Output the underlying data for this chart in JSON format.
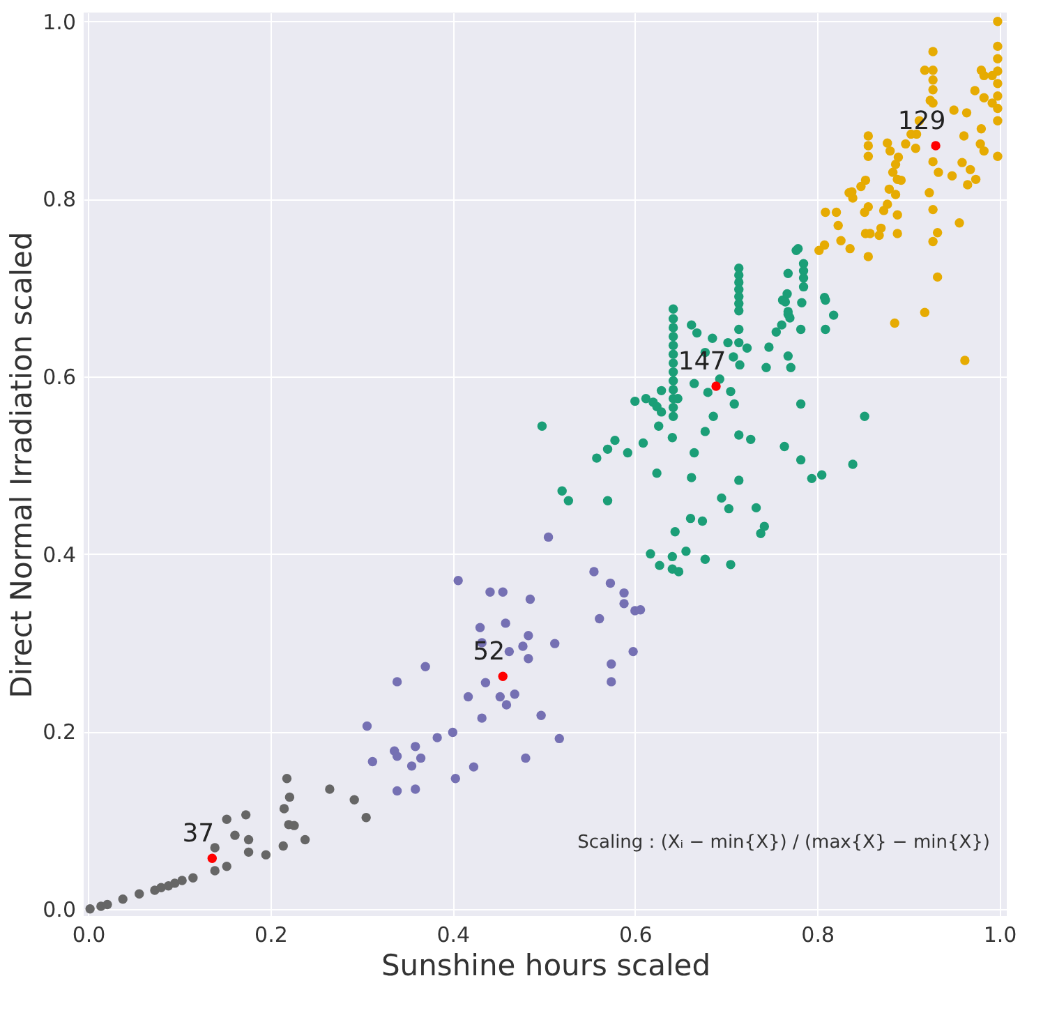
{
  "chart_data": {
    "type": "scatter",
    "xlabel": "Sunshine hours scaled",
    "ylabel": "Direct Normal Irradiation scaled",
    "xlim": [
      -0.005,
      1.008
    ],
    "ylim": [
      -0.008,
      1.01
    ],
    "xticks": [
      {
        "value": 0,
        "label": "0.0"
      },
      {
        "value": 0.2,
        "label": "0.2"
      },
      {
        "value": 0.4,
        "label": "0.4"
      },
      {
        "value": 0.6,
        "label": "0.6"
      },
      {
        "value": 0.8,
        "label": "0.8"
      },
      {
        "value": 1,
        "label": "1.0"
      }
    ],
    "yticks": [
      {
        "value": 0,
        "label": "0.0"
      },
      {
        "value": 0.2,
        "label": "0.2"
      },
      {
        "value": 0.4,
        "label": "0.4"
      },
      {
        "value": 0.6,
        "label": "0.6"
      },
      {
        "value": 0.8,
        "label": "0.8"
      },
      {
        "value": 1,
        "label": "1.0"
      }
    ],
    "grid": true,
    "marker": "circle",
    "annotations": [
      "Scaling : (Xᵢ − min{X}) / (max{X} − min{X})",
      {
        "text": "37",
        "x": 0.136,
        "y": 0.057
      },
      {
        "text": "52",
        "x": 0.455,
        "y": 0.262
      },
      {
        "text": "147",
        "x": 0.689,
        "y": 0.589
      },
      {
        "text": "129",
        "x": 0.93,
        "y": 0.86
      }
    ],
    "series": [
      {
        "color": "#666666",
        "x": [
          0.002,
          0.014,
          0.021,
          0.038,
          0.056,
          0.073,
          0.08,
          0.088,
          0.095,
          0.103,
          0.115,
          0.139,
          0.152,
          0.139,
          0.152,
          0.161,
          0.173,
          0.176,
          0.176,
          0.195,
          0.214,
          0.218,
          0.221,
          0.215,
          0.22,
          0.226,
          0.238,
          0.265,
          0.292,
          0.305
        ],
        "values": [
          0.0,
          0.003,
          0.005,
          0.011,
          0.017,
          0.021,
          0.024,
          0.026,
          0.029,
          0.032,
          0.035,
          0.043,
          0.048,
          0.069,
          0.101,
          0.083,
          0.106,
          0.078,
          0.064,
          0.061,
          0.071,
          0.147,
          0.126,
          0.113,
          0.095,
          0.094,
          0.078,
          0.135,
          0.123,
          0.103
        ]
      },
      {
        "color": "#7570b3",
        "x": [
          0.339,
          0.37,
          0.306,
          0.312,
          0.336,
          0.339,
          0.355,
          0.359,
          0.365,
          0.383,
          0.4,
          0.339,
          0.359,
          0.505,
          0.406,
          0.441,
          0.455,
          0.485,
          0.555,
          0.573,
          0.588,
          0.588,
          0.6,
          0.606,
          0.561,
          0.43,
          0.458,
          0.483,
          0.477,
          0.512,
          0.462,
          0.483,
          0.436,
          0.417,
          0.452,
          0.468,
          0.459,
          0.432,
          0.497,
          0.517,
          0.574,
          0.574,
          0.598,
          0.48,
          0.403,
          0.423,
          0.432
        ],
        "values": [
          0.256,
          0.273,
          0.206,
          0.166,
          0.178,
          0.172,
          0.161,
          0.183,
          0.17,
          0.193,
          0.199,
          0.133,
          0.135,
          0.419,
          0.37,
          0.357,
          0.357,
          0.349,
          0.38,
          0.367,
          0.356,
          0.344,
          0.336,
          0.337,
          0.327,
          0.317,
          0.322,
          0.308,
          0.296,
          0.299,
          0.29,
          0.282,
          0.255,
          0.239,
          0.239,
          0.242,
          0.23,
          0.215,
          0.218,
          0.192,
          0.276,
          0.256,
          0.29,
          0.17,
          0.147,
          0.16,
          0.3
        ]
      },
      {
        "color": "#1b9e77",
        "x": [
          0.642,
          0.642,
          0.642,
          0.642,
          0.642,
          0.642,
          0.642,
          0.642,
          0.642,
          0.642,
          0.642,
          0.642,
          0.642,
          0.714,
          0.714,
          0.714,
          0.714,
          0.714,
          0.714,
          0.714,
          0.662,
          0.668,
          0.685,
          0.702,
          0.714,
          0.723,
          0.714,
          0.677,
          0.715,
          0.708,
          0.665,
          0.68,
          0.693,
          0.705,
          0.709,
          0.686,
          0.677,
          0.629,
          0.612,
          0.62,
          0.624,
          0.629,
          0.6,
          0.647,
          0.626,
          0.641,
          0.609,
          0.578,
          0.57,
          0.592,
          0.558,
          0.665,
          0.498,
          0.52,
          0.527,
          0.57,
          0.624,
          0.662,
          0.714,
          0.727,
          0.714,
          0.695,
          0.703,
          0.733,
          0.742,
          0.738,
          0.661,
          0.674,
          0.644,
          0.617,
          0.641,
          0.627,
          0.641,
          0.648,
          0.656,
          0.677,
          0.705,
          0.747,
          0.744,
          0.768,
          0.771,
          0.782,
          0.764,
          0.782,
          0.794,
          0.805,
          0.839,
          0.809,
          0.818,
          0.809,
          0.782,
          0.768,
          0.785,
          0.785,
          0.785,
          0.785,
          0.762,
          0.767,
          0.768,
          0.77,
          0.761,
          0.755,
          0.783,
          0.777,
          0.852,
          0.779,
          0.808,
          0.765,
          0.768
        ],
        "values": [
          0.676,
          0.665,
          0.655,
          0.645,
          0.635,
          0.625,
          0.615,
          0.605,
          0.595,
          0.585,
          0.575,
          0.565,
          0.555,
          0.722,
          0.714,
          0.706,
          0.698,
          0.69,
          0.682,
          0.674,
          0.658,
          0.649,
          0.643,
          0.638,
          0.638,
          0.632,
          0.653,
          0.627,
          0.613,
          0.622,
          0.592,
          0.582,
          0.597,
          0.583,
          0.569,
          0.555,
          0.538,
          0.584,
          0.575,
          0.571,
          0.566,
          0.56,
          0.572,
          0.575,
          0.544,
          0.531,
          0.525,
          0.528,
          0.518,
          0.514,
          0.508,
          0.514,
          0.544,
          0.471,
          0.46,
          0.46,
          0.491,
          0.486,
          0.534,
          0.529,
          0.483,
          0.463,
          0.451,
          0.452,
          0.431,
          0.423,
          0.44,
          0.437,
          0.425,
          0.4,
          0.397,
          0.387,
          0.383,
          0.38,
          0.403,
          0.394,
          0.388,
          0.633,
          0.61,
          0.623,
          0.61,
          0.569,
          0.521,
          0.506,
          0.485,
          0.489,
          0.501,
          0.686,
          0.669,
          0.653,
          0.653,
          0.716,
          0.727,
          0.719,
          0.711,
          0.701,
          0.686,
          0.693,
          0.673,
          0.666,
          0.658,
          0.65,
          0.683,
          0.742,
          0.555,
          0.744,
          0.689,
          0.684,
          0.67
        ]
      },
      {
        "color": "#e6ab02",
        "x": [
          0.998,
          0.998,
          0.998,
          0.998,
          0.998,
          0.998,
          0.998,
          0.998,
          0.992,
          0.992,
          0.983,
          0.983,
          0.98,
          0.973,
          0.998,
          0.98,
          0.979,
          0.983,
          0.961,
          0.95,
          0.964,
          0.927,
          0.918,
          0.927,
          0.927,
          0.927,
          0.927,
          0.924,
          0.912,
          0.909,
          0.908,
          0.897,
          0.903,
          0.927,
          0.933,
          0.948,
          0.959,
          0.968,
          0.974,
          0.965,
          0.923,
          0.927,
          0.956,
          0.932,
          0.927,
          0.932,
          0.918,
          0.885,
          0.962,
          0.856,
          0.856,
          0.856,
          0.877,
          0.88,
          0.889,
          0.886,
          0.883,
          0.888,
          0.892,
          0.853,
          0.848,
          0.838,
          0.839,
          0.835,
          0.879,
          0.886,
          0.877,
          0.873,
          0.856,
          0.852,
          0.888,
          0.809,
          0.821,
          0.823,
          0.87,
          0.868,
          0.853,
          0.858,
          0.888,
          0.826,
          0.836,
          0.808,
          0.802,
          0.856
        ],
        "values": [
          1.0,
          0.972,
          0.958,
          0.944,
          0.93,
          0.916,
          0.902,
          0.888,
          0.939,
          0.908,
          0.939,
          0.914,
          0.945,
          0.922,
          0.848,
          0.879,
          0.862,
          0.854,
          0.871,
          0.9,
          0.897,
          0.966,
          0.945,
          0.945,
          0.934,
          0.923,
          0.908,
          0.911,
          0.888,
          0.873,
          0.857,
          0.862,
          0.873,
          0.842,
          0.83,
          0.826,
          0.841,
          0.833,
          0.822,
          0.816,
          0.807,
          0.788,
          0.773,
          0.762,
          0.752,
          0.712,
          0.672,
          0.66,
          0.618,
          0.871,
          0.86,
          0.848,
          0.863,
          0.854,
          0.847,
          0.839,
          0.83,
          0.822,
          0.821,
          0.821,
          0.814,
          0.808,
          0.801,
          0.807,
          0.811,
          0.805,
          0.794,
          0.787,
          0.791,
          0.785,
          0.782,
          0.785,
          0.785,
          0.77,
          0.767,
          0.759,
          0.761,
          0.761,
          0.761,
          0.753,
          0.744,
          0.748,
          0.742,
          0.735
        ]
      },
      {
        "color": "#ff0000",
        "x": [
          0.136,
          0.455,
          0.689,
          0.93
        ],
        "values": [
          0.057,
          0.262,
          0.589,
          0.86
        ]
      }
    ]
  }
}
